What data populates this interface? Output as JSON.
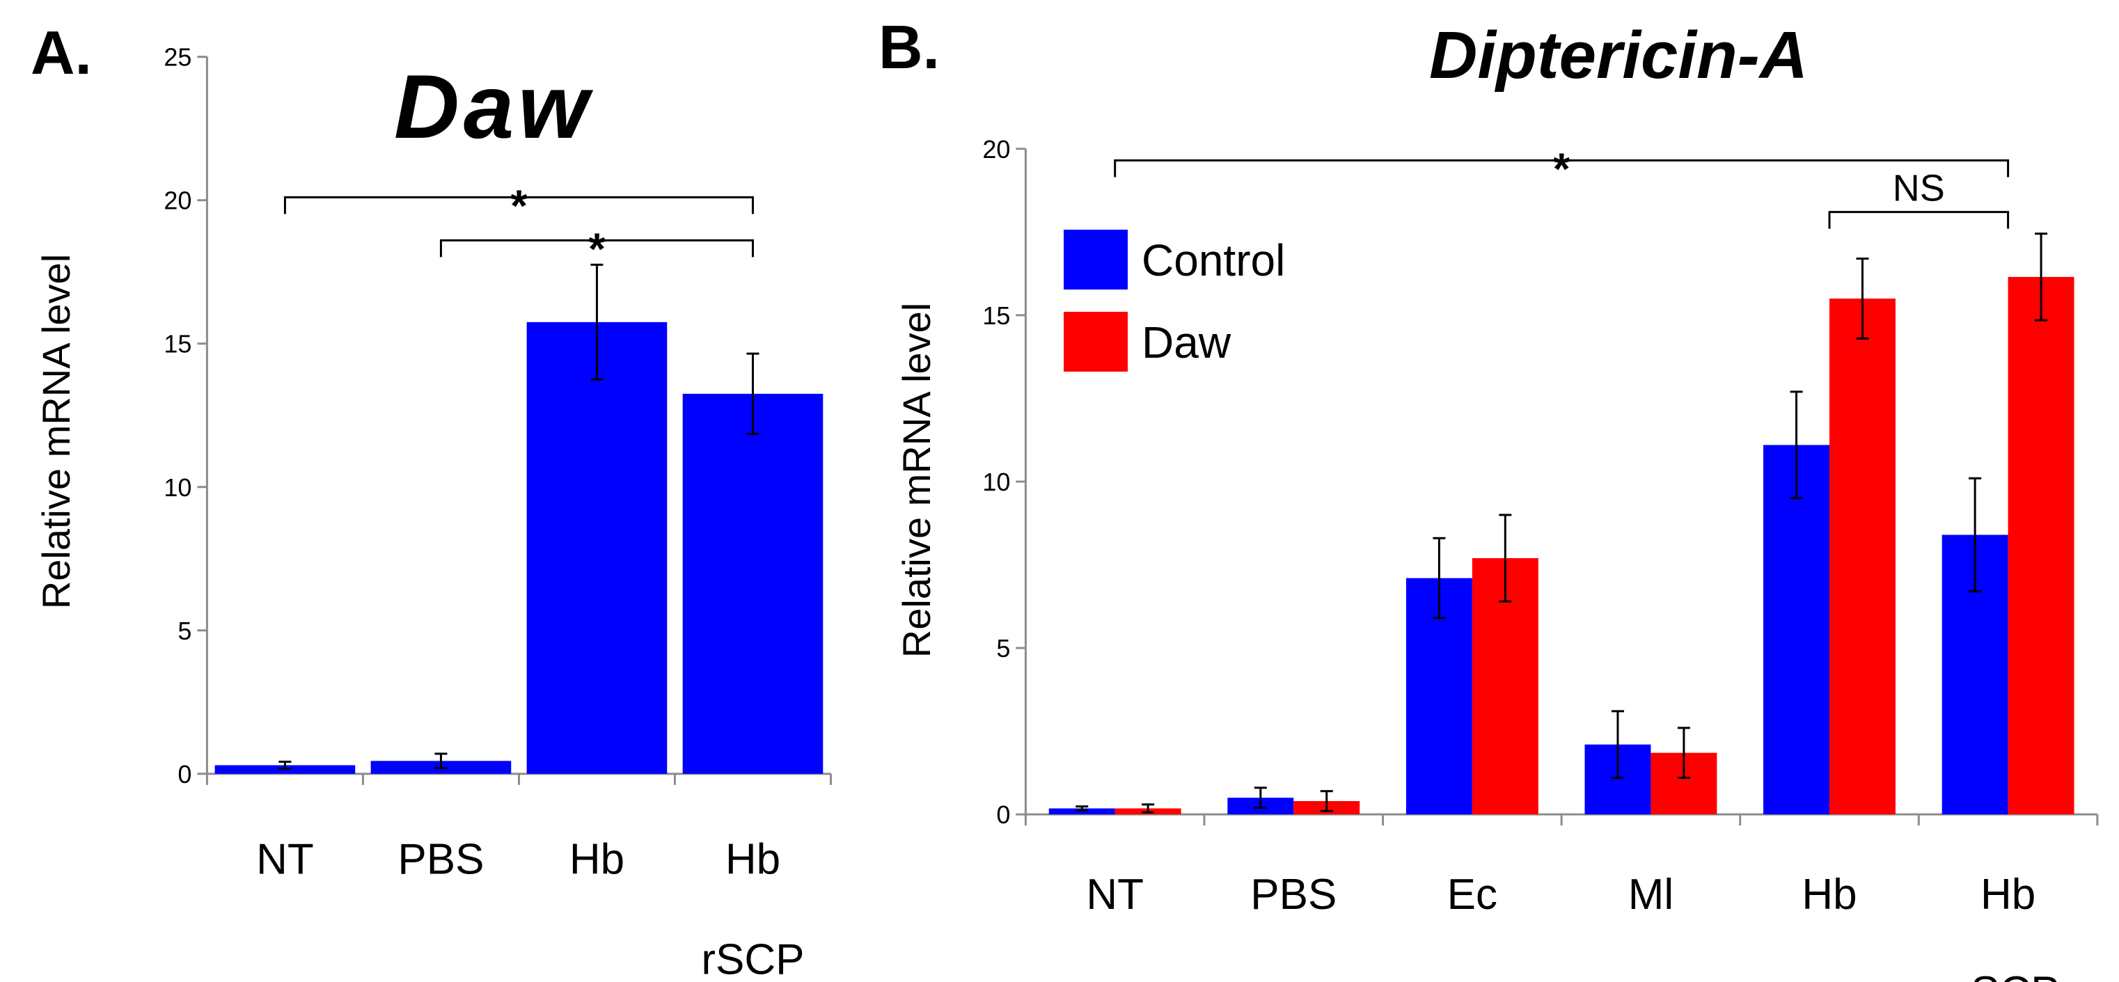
{
  "chart_data": [
    {
      "panel": "A.",
      "type": "bar",
      "title": "Daw",
      "ylabel": "Relative mRNA level",
      "ylim": [
        0,
        25
      ],
      "yticks": [
        "0",
        "5",
        "10",
        "15",
        "20",
        "25"
      ],
      "categories": [
        [
          "NT"
        ],
        [
          "PBS"
        ],
        [
          "Hb"
        ],
        [
          "Hb",
          "rSCP"
        ]
      ],
      "series": [
        {
          "name": "Daw",
          "color": "#0000ff",
          "values": [
            0.3,
            0.45,
            15.75,
            13.25
          ],
          "errors": [
            0.12,
            0.25,
            2.0,
            1.4
          ]
        }
      ],
      "annotations": [
        {
          "from": 0,
          "to": 3,
          "y": 20.1,
          "label": "*"
        },
        {
          "from": 1,
          "to": 3,
          "y": 18.6,
          "label": "*"
        }
      ]
    },
    {
      "panel": "B.",
      "type": "bar",
      "title": "Diptericin-A",
      "ylabel": "Relative mRNA level",
      "ylim": [
        0,
        20
      ],
      "yticks": [
        "0",
        "5",
        "10",
        "15",
        "20"
      ],
      "categories": [
        [
          "NT"
        ],
        [
          "PBS"
        ],
        [
          "Ec"
        ],
        [
          "Ml"
        ],
        [
          "Hb"
        ],
        [
          "Hb",
          "rSCP"
        ]
      ],
      "legend": {
        "position": "top-left"
      },
      "series": [
        {
          "name": "Control",
          "color": "#0000ff",
          "values": [
            0.18,
            0.5,
            7.1,
            2.1,
            11.1,
            8.4
          ],
          "errors": [
            0.06,
            0.3,
            1.2,
            1.0,
            1.6,
            1.7
          ]
        },
        {
          "name": "Daw",
          "color": "#ff0000",
          "values": [
            0.18,
            0.4,
            7.7,
            1.85,
            15.5,
            16.15
          ],
          "errors": [
            0.12,
            0.3,
            1.3,
            0.75,
            1.2,
            1.3
          ]
        }
      ],
      "annotations": [
        {
          "from": 0,
          "to": 5,
          "y": 19.65,
          "label": "*"
        },
        {
          "from": 4,
          "to": 5,
          "y": 18.1,
          "label": "NS"
        }
      ]
    }
  ]
}
